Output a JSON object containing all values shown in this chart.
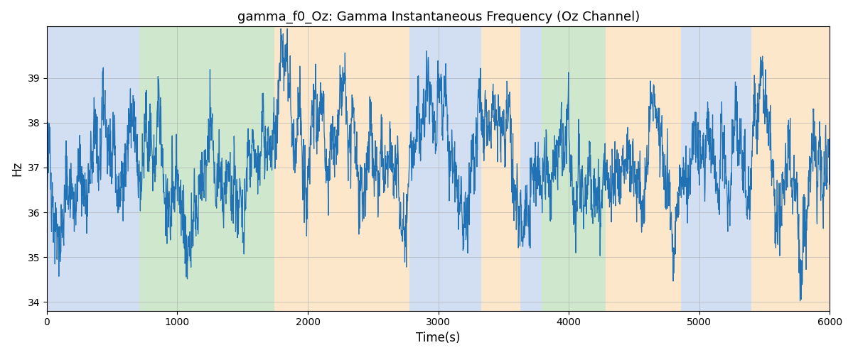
{
  "title": "gamma_f0_Oz: Gamma Instantaneous Frequency (Oz Channel)",
  "xlabel": "Time(s)",
  "ylabel": "Hz",
  "xlim": [
    0,
    6000
  ],
  "ylim": [
    33.8,
    40.15
  ],
  "yticks": [
    34,
    35,
    36,
    37,
    38,
    39
  ],
  "xticks": [
    0,
    1000,
    2000,
    3000,
    4000,
    5000,
    6000
  ],
  "figsize": [
    12.0,
    5.0
  ],
  "dpi": 100,
  "line_color": "#2171b5",
  "line_width": 0.9,
  "regions": [
    {
      "start": 0,
      "end": 710,
      "color": "#aec6e8",
      "alpha": 0.55
    },
    {
      "start": 710,
      "end": 1745,
      "color": "#a8d5a2",
      "alpha": 0.55
    },
    {
      "start": 1745,
      "end": 2780,
      "color": "#fdd5a0",
      "alpha": 0.55
    },
    {
      "start": 2780,
      "end": 3330,
      "color": "#aec6e8",
      "alpha": 0.55
    },
    {
      "start": 3330,
      "end": 3630,
      "color": "#fdd5a0",
      "alpha": 0.55
    },
    {
      "start": 3630,
      "end": 3790,
      "color": "#aec6e8",
      "alpha": 0.55
    },
    {
      "start": 3790,
      "end": 4280,
      "color": "#a8d5a2",
      "alpha": 0.55
    },
    {
      "start": 4280,
      "end": 4860,
      "color": "#fdd5a0",
      "alpha": 0.55
    },
    {
      "start": 4860,
      "end": 5400,
      "color": "#aec6e8",
      "alpha": 0.55
    },
    {
      "start": 5400,
      "end": 6000,
      "color": "#fdd5a0",
      "alpha": 0.55
    }
  ],
  "seed": 42,
  "n_points": 3000,
  "base_freq": 37.1,
  "volatility": 0.22,
  "mean_rev_speed": 0.03
}
